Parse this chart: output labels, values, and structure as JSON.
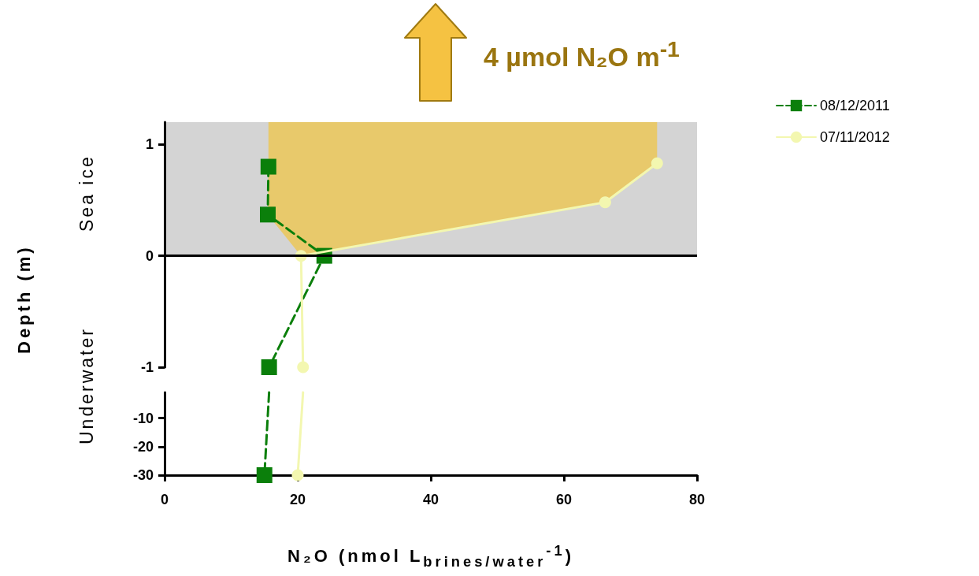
{
  "chart_data": [
    {
      "type": "line",
      "xlim": [
        0,
        80
      ],
      "xticks": [
        0,
        20,
        40,
        60,
        80
      ],
      "ylim": [
        -1,
        1.2
      ],
      "yticks": [
        -1,
        0,
        1
      ],
      "tick_labels": "y",
      "ylabel": "Depth (m)",
      "legend": "right",
      "annotations": [
        "Sea ice",
        "Underwater",
        "4 µmol N₂O m$^{-1}$"
      ],
      "bands": [
        {
          "axis": "y",
          "from": 0,
          "to": 1.2,
          "color": "#d4d4d4"
        }
      ],
      "ref_lines": [
        {
          "axis": "y",
          "value": 0,
          "color": "#000000"
        }
      ],
      "series": [
        {
          "name": "08/12/2011",
          "color": "#0b7f0b",
          "marker": "square",
          "line_style": "dashed",
          "x": [
            15.6,
            15.5,
            24,
            15.7
          ],
          "values": [
            0.8,
            0.37,
            0,
            -1
          ]
        },
        {
          "name": "07/11/2012",
          "color": "#f3f7b0",
          "marker": "circle",
          "line_style": "solid",
          "x": [
            74,
            66.2,
            20.5,
            20.8
          ],
          "values": [
            0.83,
            0.48,
            0,
            -1
          ]
        }
      ]
    },
    {
      "type": "line",
      "xlim": [
        0,
        80
      ],
      "xticks": [
        0,
        20,
        40,
        60,
        80
      ],
      "ylim": [
        -30,
        -1
      ],
      "yticks": [
        -30,
        -20,
        -10
      ],
      "xlabel": "N₂O (nmol L$_{brines/water}$$^{-1}$)",
      "series": [
        {
          "color": "#0b7f0b",
          "marker": "square",
          "line_style": "dashed",
          "x": [
            15.7,
            15
          ],
          "values": [
            -1,
            -30
          ]
        },
        {
          "color": "#f3f7b0",
          "marker": "circle",
          "line_style": "solid",
          "x": [
            20.8,
            20
          ],
          "values": [
            -1,
            -30
          ]
        }
      ]
    }
  ]
}
